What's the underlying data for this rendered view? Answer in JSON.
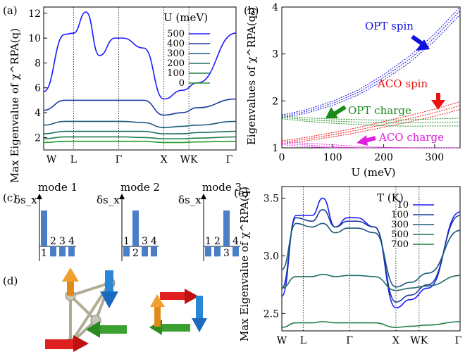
{
  "panel_a": {
    "panel_label": "(a)",
    "ylabel": "Max Eigenvalue of χ^RPA(q)",
    "legend_title": "U (meV)",
    "legend_entries": [
      "500",
      "400",
      "300",
      "200",
      "100",
      "0"
    ],
    "colors": [
      "#1a1aff",
      "#1a3a9f",
      "#1c5a7c",
      "#1e6e62",
      "#1f7f4a",
      "#229a2a"
    ],
    "yticks": [
      "2",
      "4",
      "6",
      "8",
      "10",
      "12"
    ],
    "xticks": [
      "W",
      "L",
      "Γ",
      "X",
      "WK",
      "Γ"
    ]
  },
  "panel_b": {
    "panel_label": "(b)",
    "ylabel": "Eigenvalues of χ^RPA(q₀)",
    "xlabel": "U (meV)",
    "xticks": [
      "0",
      "100",
      "200",
      "300"
    ],
    "yticks": [
      "1",
      "2",
      "3",
      "4"
    ],
    "annotations": {
      "opt_spin": "OPT spin",
      "aco_spin": "ACO spin",
      "opt_charge": "OPT charge",
      "aco_charge": "ACO charge"
    },
    "colors": {
      "opt_spin": "#1010e0",
      "aco_spin": "#ee1010",
      "opt_charge": "#1a8a1a",
      "aco_charge": "#e020e0"
    }
  },
  "panel_c": {
    "panel_label": "(c)",
    "axis_symbol": "δs_x",
    "modes": [
      {
        "title": "mode 1",
        "values": [
          1.0,
          -0.28,
          -0.28,
          -0.28
        ],
        "labels": [
          "1",
          "2",
          "3",
          "4"
        ]
      },
      {
        "title": "mode 2",
        "values": [
          -0.28,
          1.0,
          -0.28,
          -0.28
        ],
        "labels": [
          "1",
          "2",
          "3",
          "4"
        ]
      },
      {
        "title": "mode 3",
        "values": [
          -0.28,
          -0.28,
          1.0,
          -0.28
        ],
        "labels": [
          "1",
          "2",
          "3",
          "4"
        ]
      }
    ],
    "bar_color": "#4a7fc8"
  },
  "panel_d": {
    "panel_label": "(d)"
  },
  "panel_e": {
    "panel_label": "(e)",
    "ylabel": "Max Eigenvalue of χ^RPA(q)",
    "legend_title": "T (K)",
    "legend_entries": [
      "10",
      "100",
      "300",
      "500",
      "700"
    ],
    "colors": [
      "#1a1aff",
      "#1a3a9f",
      "#1c5a7c",
      "#1e6e62",
      "#1f7f4a"
    ],
    "yticks": [
      "2.5",
      "3.0",
      "3.5"
    ],
    "xticks": [
      "W",
      "L",
      "Γ",
      "X",
      "WK",
      "Γ"
    ]
  },
  "chart_data": [
    {
      "type": "line",
      "panel": "(a)",
      "x_labels": [
        "W",
        "L",
        "Γ",
        "X",
        "WK",
        "Γ"
      ],
      "ylim": [
        1,
        12.5
      ],
      "series": [
        {
          "name": "500",
          "values": [
            5.7,
            10.3,
            10.4,
            12.1,
            8.6,
            10.0,
            10.0,
            9.2,
            5.1,
            5.8,
            6.4,
            10.4
          ]
        },
        {
          "name": "400",
          "values": [
            4.2,
            5.0,
            5.0,
            5.0,
            5.0,
            5.0,
            5.0,
            5.0,
            3.8,
            4.0,
            4.4,
            5.1
          ]
        },
        {
          "name": "300",
          "values": [
            3.0,
            3.3,
            3.3,
            3.3,
            3.3,
            3.3,
            3.3,
            3.2,
            2.8,
            2.9,
            3.0,
            3.3
          ]
        },
        {
          "name": "200",
          "values": [
            2.3,
            2.5,
            2.5,
            2.5,
            2.5,
            2.5,
            2.5,
            2.5,
            2.3,
            2.3,
            2.4,
            2.5
          ]
        },
        {
          "name": "100",
          "values": [
            1.9,
            2.05,
            2.05,
            2.05,
            2.05,
            2.05,
            2.05,
            2.0,
            1.9,
            1.9,
            1.95,
            2.05
          ]
        },
        {
          "name": "0",
          "values": [
            1.6,
            1.7,
            1.7,
            1.7,
            1.7,
            1.7,
            1.7,
            1.7,
            1.6,
            1.6,
            1.65,
            1.7
          ]
        }
      ]
    },
    {
      "type": "line",
      "panel": "(b)",
      "xlabel": "U (meV)",
      "xlim": [
        0,
        350
      ],
      "ylim": [
        1,
        4
      ],
      "series": [
        {
          "name": "OPT spin",
          "x": [
            0,
            50,
            100,
            150,
            200,
            250,
            300,
            350
          ],
          "y": [
            1.67,
            1.78,
            1.95,
            2.18,
            2.5,
            2.88,
            3.35,
            3.92
          ]
        },
        {
          "name": "ACO spin",
          "x": [
            0,
            50,
            100,
            150,
            200,
            250,
            300,
            350
          ],
          "y": [
            1.12,
            1.19,
            1.28,
            1.38,
            1.5,
            1.62,
            1.75,
            1.9
          ]
        },
        {
          "name": "OPT charge",
          "x": [
            0,
            50,
            100,
            150,
            200,
            250,
            300,
            350
          ],
          "y": [
            1.65,
            1.6,
            1.57,
            1.55,
            1.53,
            1.53,
            1.54,
            1.55
          ]
        },
        {
          "name": "ACO charge",
          "x": [
            0,
            50,
            100,
            150,
            200,
            250,
            300,
            350
          ],
          "y": [
            1.1,
            1.06,
            1.02,
            0.98,
            0.95,
            0.92,
            0.9,
            0.88
          ]
        }
      ]
    },
    {
      "type": "line",
      "panel": "(e)",
      "x_labels": [
        "W",
        "L",
        "Γ",
        "X",
        "WK",
        "Γ"
      ],
      "ylim": [
        2.35,
        3.6
      ],
      "series": [
        {
          "name": "10",
          "values": [
            2.65,
            3.35,
            3.35,
            3.5,
            3.25,
            3.33,
            3.33,
            3.25,
            2.55,
            2.62,
            2.72,
            3.38
          ]
        },
        {
          "name": "100",
          "values": [
            2.72,
            3.33,
            3.3,
            3.4,
            3.25,
            3.3,
            3.3,
            3.25,
            2.6,
            2.66,
            2.75,
            3.35
          ]
        },
        {
          "name": "300",
          "values": [
            2.88,
            3.28,
            3.25,
            3.28,
            3.2,
            3.24,
            3.24,
            3.2,
            2.73,
            2.77,
            2.85,
            3.22
          ]
        },
        {
          "name": "500",
          "values": [
            2.72,
            2.82,
            2.82,
            2.84,
            2.82,
            2.83,
            2.83,
            2.82,
            2.7,
            2.72,
            2.74,
            2.83
          ]
        },
        {
          "name": "700",
          "values": [
            2.38,
            2.42,
            2.42,
            2.43,
            2.42,
            2.42,
            2.42,
            2.42,
            2.38,
            2.39,
            2.4,
            2.43
          ]
        }
      ]
    }
  ]
}
